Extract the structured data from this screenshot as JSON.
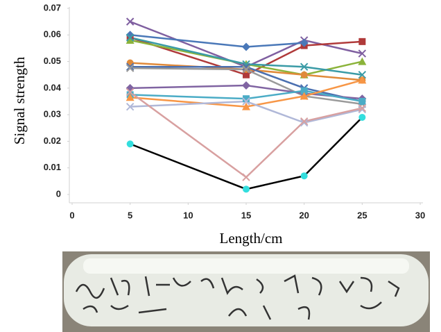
{
  "chart_data": {
    "type": "line",
    "y_label": "Signal strength",
    "x_label": "Length/cm",
    "x": [
      5,
      15,
      20,
      25
    ],
    "xlim": [
      0,
      30
    ],
    "xticks": [
      0,
      5,
      10,
      15,
      20,
      25,
      30
    ],
    "ylim": [
      0,
      0.07
    ],
    "yticks": [
      0,
      0.01,
      0.02,
      0.03,
      0.04,
      0.05,
      0.06,
      0.07
    ],
    "series": [
      {
        "color": "#7f5fa0",
        "marker": "x",
        "values": [
          0.065,
          0.048,
          0.058,
          0.053
        ]
      },
      {
        "color": "#b03a3a",
        "marker": "square",
        "values": [
          0.059,
          0.045,
          0.056,
          0.0575
        ]
      },
      {
        "color": "#4a78b8",
        "marker": "diamond",
        "values": [
          0.06,
          0.0555,
          0.057,
          null
        ]
      },
      {
        "color": "#8bb33a",
        "marker": "triangle",
        "values": [
          0.058,
          0.049,
          0.045,
          0.05
        ]
      },
      {
        "color": "#3a9ba6",
        "marker": "x",
        "values": [
          0.059,
          0.049,
          0.048,
          0.045
        ]
      },
      {
        "color": "#e08a3a",
        "marker": "circle",
        "values": [
          0.0495,
          0.047,
          0.045,
          0.043
        ]
      },
      {
        "color": "#4a6fb0",
        "marker": "x",
        "values": [
          0.048,
          0.048,
          0.04,
          0.035
        ]
      },
      {
        "color": "#9a9a9a",
        "marker": "x",
        "values": [
          0.0475,
          0.047,
          0.037,
          0.034
        ]
      },
      {
        "color": "#8064a2",
        "marker": "diamond",
        "values": [
          0.04,
          0.041,
          0.038,
          0.036
        ]
      },
      {
        "color": "#4bacc6",
        "marker": "square",
        "values": [
          0.0375,
          0.036,
          0.039,
          0.035
        ]
      },
      {
        "color": "#f79646",
        "marker": "triangle",
        "values": [
          0.0365,
          0.033,
          0.037,
          0.043
        ]
      },
      {
        "color": "#b0b8d8",
        "marker": "x",
        "values": [
          0.033,
          0.035,
          0.027,
          0.032
        ]
      },
      {
        "color": "#d8a0a0",
        "marker": "x",
        "values": [
          0.0385,
          0.0065,
          0.0275,
          0.0325
        ]
      },
      {
        "color": "#000000",
        "marker": "circle",
        "marker_color": "#33dede",
        "values": [
          0.019,
          0.002,
          0.007,
          0.029
        ]
      }
    ]
  }
}
